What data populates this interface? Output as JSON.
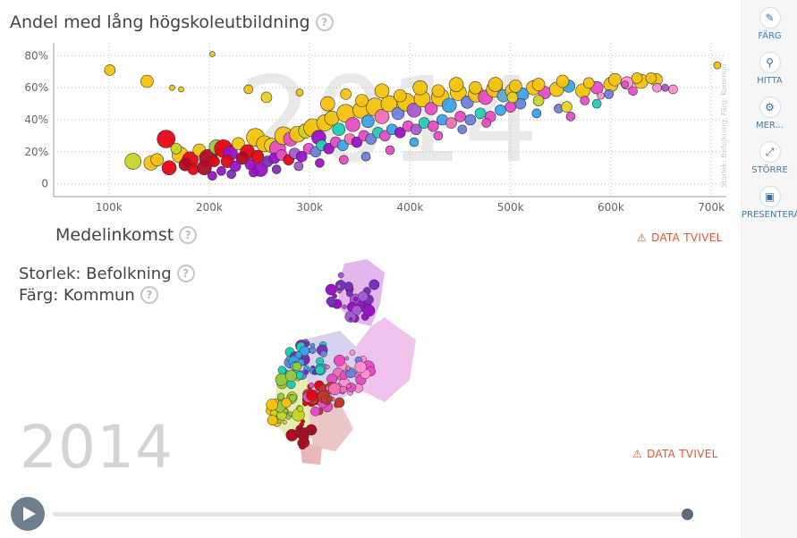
{
  "title": "Andel med lång högskoleutbildning",
  "x_title": "Medelinkomst",
  "size_label": "Storlek: Befolkning",
  "color_label": "Färg: Kommun",
  "year": "2014",
  "watermark_side": "Storlek: Befolkning, Färg: Kommun",
  "warning_label": "DATA TVIVEL",
  "warning_color": "#e4572e",
  "help_symbol": "?",
  "sidebar": {
    "items": [
      {
        "label": "FÄRG",
        "icon": "brush-icon"
      },
      {
        "label": "HITTA",
        "icon": "search-icon"
      },
      {
        "label": "MER...",
        "icon": "gear-icon"
      },
      {
        "label": "STÖRRE",
        "icon": "expand-icon"
      },
      {
        "label": "PRESENTERA",
        "icon": "present-icon"
      }
    ]
  },
  "timeslider": {
    "value": "2014",
    "position": 1.0
  },
  "chart_data": {
    "type": "scatter",
    "x": {
      "ticks": [
        "100k",
        "200k",
        "300k",
        "400k",
        "500k",
        "600k",
        "700k"
      ],
      "tick_values": [
        100000,
        200000,
        300000,
        400000,
        500000,
        600000,
        700000
      ],
      "range": [
        45000,
        715000
      ]
    },
    "y": {
      "ticks": [
        "80%",
        "60%",
        "40%",
        "20%",
        "0"
      ],
      "tick_values": [
        80,
        60,
        40,
        20,
        0
      ],
      "range": [
        -8,
        88
      ]
    },
    "grid": true,
    "palette": [
      "#f4c20d",
      "#e8d21d",
      "#c7d426",
      "#96c93d",
      "#e30613",
      "#b00a24",
      "#9b12c7",
      "#7b2fbf",
      "#e74cc6",
      "#f06fb5",
      "#1fcfb4",
      "#3aa3e8",
      "#6f7fdc",
      "#a85ad1",
      "#c0392b",
      "#ff8fd0",
      "#5fa8d3",
      "#9ad24b"
    ],
    "points": [
      [
        101000,
        71,
        6,
        0
      ],
      [
        138000,
        64,
        7,
        0
      ],
      [
        163000,
        60,
        3,
        0
      ],
      [
        172000,
        59,
        3,
        0
      ],
      [
        203000,
        81,
        3,
        0
      ],
      [
        239000,
        59,
        5,
        0
      ],
      [
        257000,
        54,
        6,
        1
      ],
      [
        290000,
        57,
        4,
        0
      ],
      [
        124000,
        14,
        9,
        2
      ],
      [
        142000,
        13,
        8,
        0
      ],
      [
        148000,
        15,
        7,
        0
      ],
      [
        157000,
        28,
        10,
        4
      ],
      [
        171000,
        18,
        9,
        0
      ],
      [
        181000,
        15,
        9,
        4
      ],
      [
        190000,
        21,
        7,
        0
      ],
      [
        199000,
        16,
        10,
        5
      ],
      [
        207000,
        23,
        8,
        3
      ],
      [
        214000,
        22,
        10,
        4
      ],
      [
        221000,
        19,
        8,
        6
      ],
      [
        229000,
        25,
        7,
        0
      ],
      [
        238000,
        20,
        8,
        4
      ],
      [
        246000,
        29,
        10,
        0
      ],
      [
        251000,
        9,
        8,
        6
      ],
      [
        255000,
        25,
        9,
        0
      ],
      [
        262000,
        24,
        8,
        1
      ],
      [
        268000,
        22,
        9,
        8
      ],
      [
        274000,
        30,
        10,
        0
      ],
      [
        281000,
        28,
        8,
        8
      ],
      [
        288000,
        31,
        9,
        0
      ],
      [
        296000,
        33,
        8,
        2
      ],
      [
        303000,
        35,
        10,
        0
      ],
      [
        309000,
        29,
        8,
        6
      ],
      [
        315000,
        38,
        9,
        0
      ],
      [
        322000,
        41,
        8,
        0
      ],
      [
        329000,
        34,
        7,
        10
      ],
      [
        336000,
        44,
        10,
        0
      ],
      [
        343000,
        37,
        8,
        8
      ],
      [
        351000,
        46,
        9,
        0
      ],
      [
        358000,
        39,
        7,
        11
      ],
      [
        365000,
        48,
        10,
        0
      ],
      [
        372000,
        42,
        8,
        9
      ],
      [
        379000,
        50,
        9,
        0
      ],
      [
        388000,
        44,
        7,
        12
      ],
      [
        396000,
        51,
        10,
        0
      ],
      [
        404000,
        46,
        8,
        13
      ],
      [
        412000,
        53,
        9,
        0
      ],
      [
        421000,
        47,
        7,
        8
      ],
      [
        430000,
        54,
        10,
        0
      ],
      [
        439000,
        49,
        8,
        11
      ],
      [
        448000,
        57,
        9,
        0
      ],
      [
        457000,
        51,
        7,
        12
      ],
      [
        466000,
        56,
        9,
        0
      ],
      [
        475000,
        54,
        8,
        8
      ],
      [
        484000,
        59,
        9,
        0
      ],
      [
        493000,
        55,
        7,
        16
      ],
      [
        502000,
        58,
        8,
        0
      ],
      [
        512000,
        56,
        7,
        11
      ],
      [
        523000,
        60,
        8,
        0
      ],
      [
        534000,
        57,
        7,
        8
      ],
      [
        546000,
        59,
        8,
        0
      ],
      [
        558000,
        61,
        7,
        11
      ],
      [
        572000,
        58,
        8,
        0
      ],
      [
        586000,
        60,
        7,
        8
      ],
      [
        600000,
        62,
        8,
        0
      ],
      [
        616000,
        63,
        7,
        15
      ],
      [
        630000,
        64,
        8,
        0
      ],
      [
        645000,
        65,
        7,
        0
      ],
      [
        662000,
        59,
        5,
        15
      ],
      [
        706000,
        74,
        4,
        0
      ],
      [
        160000,
        10,
        8,
        4
      ],
      [
        167000,
        22,
        6,
        2
      ],
      [
        176000,
        12,
        7,
        5
      ],
      [
        184000,
        9,
        6,
        4
      ],
      [
        195000,
        10,
        8,
        5
      ],
      [
        205000,
        14,
        6,
        4
      ],
      [
        212000,
        8,
        5,
        6
      ],
      [
        218000,
        14,
        7,
        4
      ],
      [
        226000,
        11,
        6,
        6
      ],
      [
        233000,
        16,
        7,
        5
      ],
      [
        241000,
        12,
        6,
        6
      ],
      [
        248000,
        17,
        7,
        4
      ],
      [
        258000,
        14,
        6,
        7
      ],
      [
        265000,
        16,
        6,
        6
      ],
      [
        272000,
        18,
        6,
        8
      ],
      [
        279000,
        15,
        6,
        4
      ],
      [
        285000,
        19,
        6,
        13
      ],
      [
        292000,
        17,
        6,
        6
      ],
      [
        299000,
        22,
        6,
        8
      ],
      [
        306000,
        20,
        6,
        12
      ],
      [
        312000,
        24,
        6,
        10
      ],
      [
        319000,
        22,
        6,
        6
      ],
      [
        326000,
        26,
        6,
        8
      ],
      [
        333000,
        24,
        6,
        11
      ],
      [
        340000,
        28,
        6,
        9
      ],
      [
        347000,
        26,
        6,
        6
      ],
      [
        354000,
        30,
        6,
        8
      ],
      [
        361000,
        28,
        6,
        12
      ],
      [
        368000,
        32,
        6,
        10
      ],
      [
        375000,
        30,
        6,
        8
      ],
      [
        382000,
        34,
        6,
        11
      ],
      [
        390000,
        32,
        6,
        6
      ],
      [
        398000,
        36,
        6,
        8
      ],
      [
        406000,
        34,
        6,
        13
      ],
      [
        414000,
        38,
        6,
        10
      ],
      [
        423000,
        36,
        6,
        8
      ],
      [
        432000,
        40,
        6,
        11
      ],
      [
        441000,
        38,
        6,
        9
      ],
      [
        450000,
        42,
        6,
        8
      ],
      [
        460000,
        40,
        6,
        12
      ],
      [
        470000,
        44,
        6,
        10
      ],
      [
        480000,
        42,
        6,
        8
      ],
      [
        490000,
        46,
        6,
        11
      ],
      [
        500000,
        48,
        6,
        8
      ],
      [
        510000,
        50,
        6,
        12
      ],
      [
        203000,
        5,
        5,
        6
      ],
      [
        222000,
        6,
        5,
        7
      ],
      [
        244000,
        7,
        5,
        6
      ],
      [
        267000,
        9,
        5,
        7
      ],
      [
        289000,
        11,
        5,
        13
      ],
      [
        310000,
        13,
        5,
        6
      ],
      [
        334000,
        15,
        5,
        8
      ],
      [
        356000,
        17,
        5,
        12
      ],
      [
        380000,
        21,
        5,
        8
      ],
      [
        404000,
        26,
        5,
        11
      ],
      [
        428000,
        30,
        5,
        8
      ],
      [
        452000,
        34,
        5,
        12
      ],
      [
        476000,
        38,
        5,
        8
      ],
      [
        526000,
        44,
        5,
        11
      ],
      [
        548000,
        47,
        5,
        12
      ],
      [
        574000,
        52,
        5,
        8
      ],
      [
        598000,
        56,
        5,
        12
      ],
      [
        622000,
        58,
        5,
        8
      ],
      [
        646000,
        60,
        5,
        15
      ],
      [
        654000,
        60,
        4,
        13
      ],
      [
        586000,
        50,
        5,
        10
      ],
      [
        560000,
        42,
        5,
        8
      ],
      [
        590000,
        55,
        4,
        15
      ],
      [
        614000,
        62,
        4,
        8
      ],
      [
        318000,
        50,
        8,
        0
      ],
      [
        336000,
        56,
        6,
        0
      ],
      [
        352000,
        52,
        7,
        0
      ],
      [
        372000,
        58,
        8,
        0
      ],
      [
        390000,
        55,
        7,
        0
      ],
      [
        410000,
        60,
        8,
        0
      ],
      [
        428000,
        58,
        7,
        0
      ],
      [
        446000,
        62,
        8,
        0
      ],
      [
        465000,
        60,
        7,
        0
      ],
      [
        485000,
        62,
        8,
        0
      ],
      [
        505000,
        61,
        7,
        0
      ],
      [
        528000,
        62,
        7,
        0
      ],
      [
        552000,
        64,
        7,
        0
      ],
      [
        578000,
        63,
        6,
        0
      ],
      [
        604000,
        65,
        7,
        0
      ],
      [
        626000,
        66,
        6,
        0
      ],
      [
        640000,
        66,
        6,
        0
      ],
      [
        556000,
        48,
        6,
        1
      ],
      [
        528000,
        52,
        6,
        2
      ],
      [
        502000,
        54,
        6,
        1
      ]
    ]
  }
}
